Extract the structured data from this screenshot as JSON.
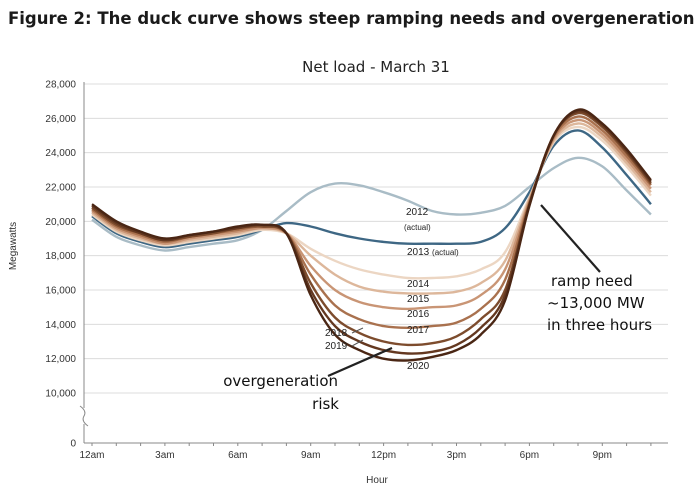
{
  "figure_title": "Figure 2: The duck curve shows steep ramping needs and overgeneration risk",
  "chart_data": {
    "type": "line",
    "title": "Net load - March 31",
    "xlabel": "Hour",
    "ylabel": "Megawatts",
    "ylim": [
      0,
      28000
    ],
    "axis_break": [
      0,
      10000
    ],
    "y_ticks": [
      0,
      10000,
      12000,
      14000,
      16000,
      18000,
      20000,
      22000,
      24000,
      26000,
      28000
    ],
    "y_tick_labels": [
      "0",
      "10,000",
      "12,000",
      "14,000",
      "16,000",
      "18,000",
      "20,000",
      "22,000",
      "24,000",
      "26,000",
      "28,000"
    ],
    "x": [
      0,
      1,
      2,
      3,
      4,
      5,
      6,
      7,
      8,
      9,
      10,
      11,
      12,
      13,
      14,
      15,
      16,
      17,
      18,
      19,
      20,
      21,
      22,
      23
    ],
    "x_ticks": [
      0,
      3,
      6,
      9,
      12,
      15,
      18,
      21
    ],
    "x_tick_labels": [
      "12am",
      "3am",
      "6am",
      "9am",
      "12pm",
      "3pm",
      "6pm",
      "9pm"
    ],
    "grid": "horizontal",
    "series": [
      {
        "name": "2012 (actual)",
        "color": "#a9bcc6",
        "values": [
          20100,
          19100,
          18600,
          18300,
          18500,
          18700,
          18900,
          19500,
          20600,
          21700,
          22200,
          22100,
          21700,
          21200,
          20600,
          20400,
          20500,
          20900,
          22000,
          23100,
          23700,
          23200,
          21800,
          20400
        ]
      },
      {
        "name": "2013 (actual)",
        "color": "#3e6784",
        "values": [
          20300,
          19300,
          18800,
          18500,
          18700,
          18900,
          19100,
          19500,
          19900,
          19700,
          19300,
          19000,
          18800,
          18700,
          18700,
          18700,
          18800,
          19600,
          21700,
          24400,
          25300,
          24300,
          22700,
          21000
        ]
      },
      {
        "name": "2014",
        "color": "#ecd6c3",
        "values": [
          20400,
          19400,
          18900,
          18600,
          18800,
          19000,
          19200,
          19500,
          19300,
          18400,
          17700,
          17200,
          16900,
          16700,
          16700,
          16800,
          17200,
          18200,
          21400,
          24600,
          25500,
          24700,
          23200,
          21500
        ]
      },
      {
        "name": "2015",
        "color": "#ddb79b",
        "values": [
          20500,
          19500,
          19000,
          18700,
          18900,
          19100,
          19300,
          19600,
          19300,
          18000,
          16900,
          16200,
          15900,
          15800,
          15800,
          15900,
          16400,
          17700,
          21300,
          24700,
          25700,
          24900,
          23400,
          21700
        ]
      },
      {
        "name": "2016",
        "color": "#c99575",
        "values": [
          20600,
          19600,
          19100,
          18700,
          19000,
          19200,
          19400,
          19600,
          19300,
          17400,
          16000,
          15300,
          15000,
          14900,
          15000,
          15100,
          15700,
          17200,
          21200,
          24800,
          25900,
          25100,
          23600,
          21900
        ]
      },
      {
        "name": "2017",
        "color": "#a9714e",
        "values": [
          20700,
          19700,
          19200,
          18800,
          19100,
          19300,
          19500,
          19700,
          19300,
          16900,
          15100,
          14300,
          13900,
          13800,
          13900,
          14100,
          14900,
          16600,
          21100,
          24900,
          26100,
          25300,
          23800,
          22100
        ]
      },
      {
        "name": "2018",
        "color": "#7d4c2d",
        "values": [
          20800,
          19800,
          19300,
          18900,
          19100,
          19300,
          19600,
          19700,
          19300,
          16400,
          14400,
          13500,
          13000,
          12800,
          12900,
          13300,
          14300,
          16000,
          21000,
          25000,
          26300,
          25500,
          24000,
          22200
        ]
      },
      {
        "name": "2019",
        "color": "#643820",
        "values": [
          20900,
          19900,
          19300,
          18900,
          19200,
          19400,
          19600,
          19800,
          19300,
          16000,
          13900,
          13000,
          12500,
          12300,
          12400,
          12800,
          13800,
          15700,
          21000,
          25000,
          26400,
          25600,
          24100,
          22300
        ]
      },
      {
        "name": "2020",
        "color": "#4a2614",
        "values": [
          21000,
          20000,
          19400,
          19000,
          19200,
          19400,
          19700,
          19800,
          19300,
          15700,
          13400,
          12500,
          12000,
          11900,
          12100,
          12500,
          13400,
          15400,
          20900,
          25000,
          26500,
          25700,
          24200,
          22400
        ]
      }
    ],
    "annotations": {
      "ramp_lines": [
        "ramp need",
        "~13,000 MW",
        "in three hours"
      ],
      "overgen_lines": [
        "overgeneration",
        "risk"
      ]
    }
  }
}
